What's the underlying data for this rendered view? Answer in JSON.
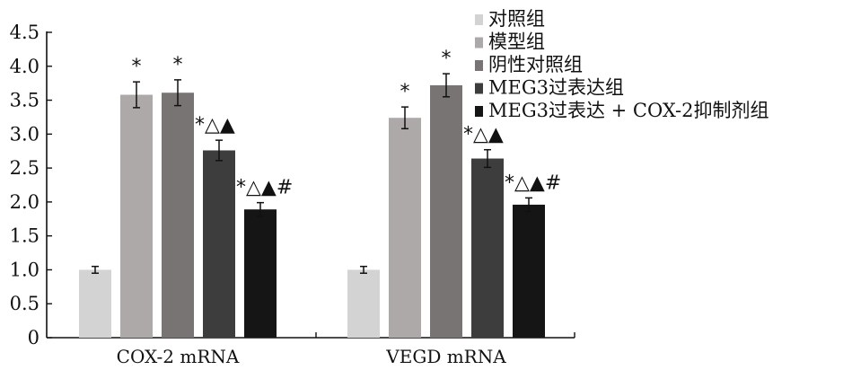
{
  "chart_data": {
    "type": "bar",
    "title": "",
    "xlabel": "",
    "ylabel": "",
    "categories": [
      "COX-2 mRNA",
      "VEGD mRNA"
    ],
    "ylim": [
      0,
      4.5
    ],
    "yticks": [
      "0",
      "0.5",
      "1.0",
      "1.5",
      "2.0",
      "2.5",
      "3.0",
      "3.5",
      "4.0",
      "4.5"
    ],
    "grid": false,
    "legend_position": "top-right",
    "series": [
      {
        "name": "对照组",
        "color": "#d3d3d3",
        "values": [
          1.0,
          1.0
        ],
        "errors": [
          0.05,
          0.05
        ],
        "markers": [
          "",
          ""
        ]
      },
      {
        "name": "模型组",
        "color": "#ada9a8",
        "values": [
          3.58,
          3.24
        ],
        "errors": [
          0.19,
          0.16
        ],
        "markers": [
          "*",
          "*"
        ]
      },
      {
        "name": "阴性对照组",
        "color": "#787473",
        "values": [
          3.61,
          3.72
        ],
        "errors": [
          0.19,
          0.17
        ],
        "markers": [
          "*",
          "*"
        ]
      },
      {
        "name": "MEG3过表达组",
        "color": "#3d3d3d",
        "values": [
          2.76,
          2.64
        ],
        "errors": [
          0.15,
          0.13
        ],
        "markers": [
          "*△▲",
          "*△▲"
        ]
      },
      {
        "name": "MEG3过表达 + COX-2抑制剂组",
        "color": "#151515",
        "values": [
          1.89,
          1.96
        ],
        "errors": [
          0.1,
          0.1
        ],
        "markers": [
          "*△▲#",
          "*△▲#"
        ]
      }
    ]
  }
}
